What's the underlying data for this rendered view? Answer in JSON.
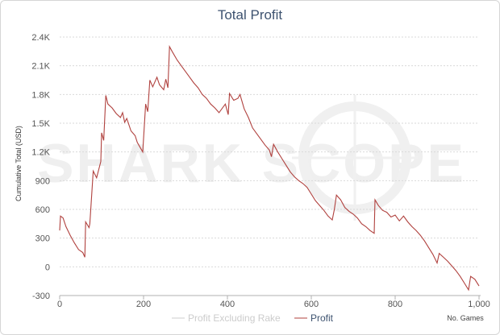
{
  "chart_data": {
    "type": "line",
    "title": "Total Profit",
    "xlabel": "No. Games",
    "ylabel": "Cumulative Total (USD)",
    "xlim": [
      0,
      1000
    ],
    "ylim": [
      -300,
      2400
    ],
    "x_ticks": [
      "0",
      "200",
      "400",
      "600",
      "800",
      "1,000"
    ],
    "y_ticks": [
      "2.4K",
      "2.1K",
      "1.8K",
      "1.5K",
      "1.2K",
      "900",
      "600",
      "300",
      "0",
      "-300"
    ],
    "grid": true,
    "legend_position": "bottom-center",
    "watermark": "SHARK SCOPE",
    "series": [
      {
        "name": "Profit Excluding Rake",
        "color": "#cccccc",
        "visible": false,
        "points": []
      },
      {
        "name": "Profit",
        "color": "#b0413e",
        "visible": true,
        "points": [
          [
            0,
            380
          ],
          [
            2,
            530
          ],
          [
            8,
            510
          ],
          [
            15,
            420
          ],
          [
            25,
            330
          ],
          [
            35,
            250
          ],
          [
            45,
            180
          ],
          [
            55,
            150
          ],
          [
            60,
            100
          ],
          [
            62,
            470
          ],
          [
            70,
            410
          ],
          [
            72,
            450
          ],
          [
            80,
            1000
          ],
          [
            88,
            930
          ],
          [
            98,
            1100
          ],
          [
            100,
            1400
          ],
          [
            105,
            1320
          ],
          [
            110,
            1790
          ],
          [
            115,
            1700
          ],
          [
            125,
            1660
          ],
          [
            135,
            1600
          ],
          [
            145,
            1560
          ],
          [
            150,
            1610
          ],
          [
            155,
            1510
          ],
          [
            160,
            1550
          ],
          [
            170,
            1420
          ],
          [
            180,
            1370
          ],
          [
            185,
            1300
          ],
          [
            198,
            1200
          ],
          [
            205,
            1700
          ],
          [
            210,
            1620
          ],
          [
            215,
            1950
          ],
          [
            222,
            1880
          ],
          [
            232,
            1980
          ],
          [
            238,
            1900
          ],
          [
            248,
            1850
          ],
          [
            253,
            1960
          ],
          [
            258,
            1870
          ],
          [
            262,
            2300
          ],
          [
            268,
            2250
          ],
          [
            280,
            2160
          ],
          [
            290,
            2100
          ],
          [
            300,
            2040
          ],
          [
            310,
            1980
          ],
          [
            320,
            1920
          ],
          [
            330,
            1870
          ],
          [
            340,
            1800
          ],
          [
            350,
            1760
          ],
          [
            360,
            1700
          ],
          [
            370,
            1660
          ],
          [
            380,
            1610
          ],
          [
            395,
            1700
          ],
          [
            402,
            1590
          ],
          [
            405,
            1810
          ],
          [
            415,
            1740
          ],
          [
            425,
            1760
          ],
          [
            430,
            1800
          ],
          [
            440,
            1650
          ],
          [
            450,
            1560
          ],
          [
            460,
            1450
          ],
          [
            470,
            1390
          ],
          [
            480,
            1330
          ],
          [
            490,
            1270
          ],
          [
            500,
            1220
          ],
          [
            505,
            1150
          ],
          [
            510,
            1280
          ],
          [
            520,
            1200
          ],
          [
            530,
            1130
          ],
          [
            540,
            1060
          ],
          [
            550,
            990
          ],
          [
            560,
            940
          ],
          [
            570,
            900
          ],
          [
            580,
            870
          ],
          [
            590,
            830
          ],
          [
            600,
            760
          ],
          [
            610,
            690
          ],
          [
            620,
            640
          ],
          [
            630,
            590
          ],
          [
            640,
            530
          ],
          [
            650,
            490
          ],
          [
            655,
            600
          ],
          [
            660,
            750
          ],
          [
            670,
            700
          ],
          [
            680,
            620
          ],
          [
            690,
            580
          ],
          [
            700,
            550
          ],
          [
            710,
            510
          ],
          [
            720,
            450
          ],
          [
            730,
            420
          ],
          [
            740,
            380
          ],
          [
            750,
            350
          ],
          [
            752,
            700
          ],
          [
            760,
            640
          ],
          [
            770,
            590
          ],
          [
            780,
            570
          ],
          [
            790,
            520
          ],
          [
            800,
            540
          ],
          [
            810,
            480
          ],
          [
            820,
            530
          ],
          [
            830,
            470
          ],
          [
            840,
            420
          ],
          [
            850,
            380
          ],
          [
            860,
            330
          ],
          [
            870,
            270
          ],
          [
            880,
            200
          ],
          [
            890,
            130
          ],
          [
            900,
            40
          ],
          [
            905,
            140
          ],
          [
            915,
            100
          ],
          [
            925,
            60
          ],
          [
            935,
            10
          ],
          [
            945,
            -40
          ],
          [
            955,
            -100
          ],
          [
            965,
            -170
          ],
          [
            975,
            -240
          ],
          [
            980,
            -100
          ],
          [
            990,
            -130
          ],
          [
            1000,
            -200
          ]
        ]
      }
    ]
  }
}
